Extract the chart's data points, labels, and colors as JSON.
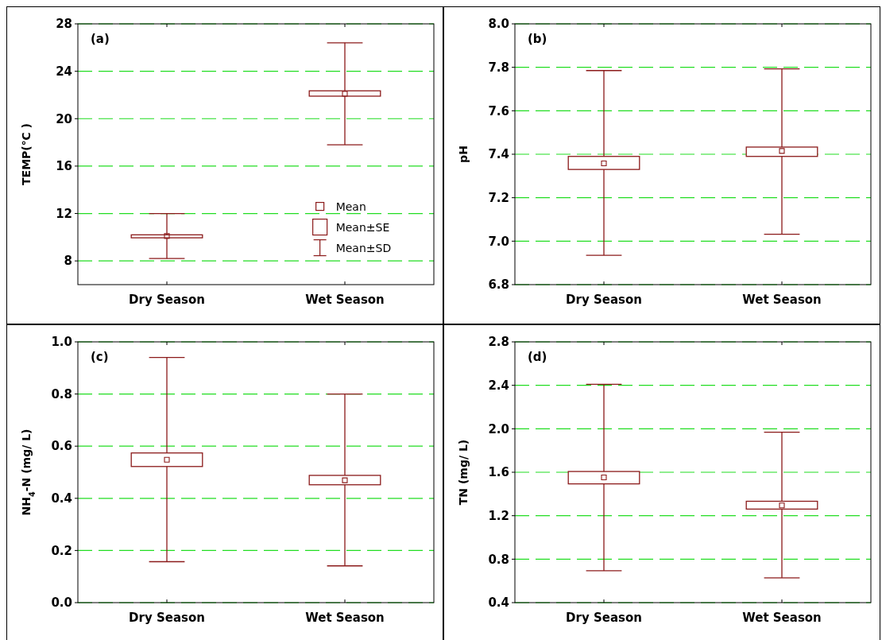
{
  "chart_data": [
    {
      "type": "box",
      "title": "(a)",
      "ylabel": "TEMP(℃ )",
      "categories": [
        "Dry Season",
        "Wet Season"
      ],
      "ylim": [
        6,
        28
      ],
      "yticks": [
        8,
        12,
        16,
        20,
        24,
        28
      ],
      "grid": "y",
      "color": "#8b1a1a",
      "annotations": [
        "Mean",
        "Mean±SE",
        "Mean±SD"
      ],
      "boxes": [
        {
          "low": 8.2,
          "q1": 9.95,
          "median": 10.1,
          "q3": 10.2,
          "high": 12
        },
        {
          "low": 17.8,
          "q1": 21.9,
          "median": 22.1,
          "q3": 22.35,
          "high": 26.4
        }
      ]
    },
    {
      "type": "box",
      "title": "(b)",
      "ylabel": "pH",
      "categories": [
        "Dry Season",
        "Wet Season"
      ],
      "ylim": [
        6.8,
        8.0
      ],
      "yticks": [
        {
          "value": 6.8,
          "label": "6.8"
        },
        {
          "value": 7.0,
          "label": "7.0"
        },
        {
          "value": 7.2,
          "label": "7.2"
        },
        {
          "value": 7.4,
          "label": "7.4"
        },
        {
          "value": 7.6,
          "label": "7.6"
        },
        {
          "value": 7.8,
          "label": "7.8"
        },
        {
          "value": 8.0,
          "label": "8.0"
        }
      ],
      "grid": "y",
      "color": "#8b1a1a",
      "boxes": [
        {
          "low": 6.935,
          "q1": 7.33,
          "median": 7.358,
          "q3": 7.39,
          "high": 7.785
        },
        {
          "low": 7.032,
          "q1": 7.39,
          "median": 7.415,
          "q3": 7.433,
          "high": 7.793
        }
      ]
    },
    {
      "type": "box",
      "title": "(c)",
      "ylabel": "NH$_{4}$-N (mg/ L)",
      "categories": [
        "Dry Season",
        "Wet Season"
      ],
      "ylim": [
        0,
        1.0
      ],
      "yticks": [
        {
          "value": 0,
          "label": "0.0"
        },
        0.2,
        0.4,
        0.6,
        0.8,
        {
          "value": 1.0,
          "label": "1.0"
        }
      ],
      "grid": "y",
      "color": "#8b1a1a",
      "boxes": [
        {
          "low": 0.157,
          "q1": 0.522,
          "median": 0.548,
          "q3": 0.574,
          "high": 0.94
        },
        {
          "low": 0.141,
          "q1": 0.452,
          "median": 0.469,
          "q3": 0.488,
          "high": 0.8
        }
      ]
    },
    {
      "type": "box",
      "title": "(d)",
      "ylabel": "TN (mg/ L)",
      "categories": [
        "Dry Season",
        "Wet Season"
      ],
      "ylim": [
        0.4,
        2.8
      ],
      "yticks": [
        0.4,
        0.8,
        1.2,
        1.6,
        {
          "value": 2.0,
          "label": "2.0"
        },
        2.4,
        2.8
      ],
      "grid": "y",
      "color": "#8b1a1a",
      "boxes": [
        {
          "low": 0.693,
          "q1": 1.493,
          "median": 1.552,
          "q3": 1.607,
          "high": 2.41
        },
        {
          "low": 0.628,
          "q1": 1.261,
          "median": 1.295,
          "q3": 1.333,
          "high": 1.969
        }
      ]
    }
  ]
}
